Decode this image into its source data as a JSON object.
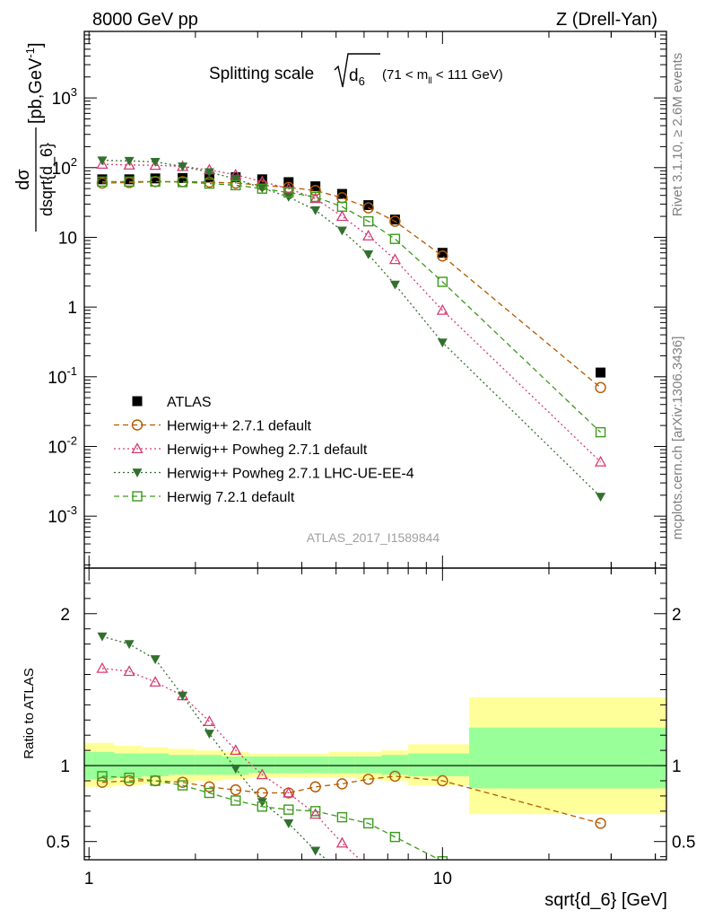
{
  "header": {
    "left_label": "8000 GeV pp",
    "right_label": "Z (Drell-Yan)"
  },
  "side_labels": {
    "rivet": "Rivet 3.1.10, ≥ 2.6M events",
    "mcplots": "mcplots.cern.ch [arXiv:1306.3436]"
  },
  "chart_data": {
    "type": "scatter",
    "title": {
      "prefix": "Splitting scale",
      "symbol": "d",
      "symbol_sub": "6",
      "range_open": "(71 < m",
      "range_sub": "ll",
      "range_close": " < 111 GeV)"
    },
    "watermark": "ATLAS_2017_I1589844",
    "xlabel": "sqrt{d_6} [GeV]",
    "x_scale": "log",
    "xlim": [
      0.97,
      43
    ],
    "x_ticks": [
      {
        "value": 1,
        "label": "1"
      },
      {
        "value": 10,
        "label": "10"
      }
    ],
    "main": {
      "y_scale": "log",
      "ylim": [
        0.00018,
        9000
      ],
      "ylabel": {
        "num": "dσ",
        "den": "dsqrt{d_6}",
        "unit_open": "[pb,GeV",
        "unit_exp": "-1",
        "unit_close": "]"
      },
      "y_ticks": [
        {
          "value": 0.001,
          "base": "10",
          "exp": "-3"
        },
        {
          "value": 0.01,
          "base": "10",
          "exp": "-2"
        },
        {
          "value": 0.1,
          "base": "10",
          "exp": "-1"
        },
        {
          "value": 1,
          "label": "1"
        },
        {
          "value": 10,
          "label": "10"
        },
        {
          "value": 100,
          "base": "10",
          "exp": "2"
        },
        {
          "value": 1000,
          "base": "10",
          "exp": "3"
        }
      ]
    },
    "ratio": {
      "ylim": [
        0.38,
        2.3
      ],
      "ylabel": "Ratio to ATLAS",
      "y_ticks": [
        {
          "value": 0.5,
          "label": "0.5"
        },
        {
          "value": 1,
          "label": "1"
        },
        {
          "value": 2,
          "label": "2"
        }
      ],
      "bands": [
        {
          "x0": 0.97,
          "x1": 1.18,
          "inner": [
            0.91,
            1.09
          ],
          "outer": [
            0.86,
            1.15
          ]
        },
        {
          "x0": 1.18,
          "x1": 1.41,
          "inner": [
            0.92,
            1.08
          ],
          "outer": [
            0.87,
            1.13
          ]
        },
        {
          "x0": 1.41,
          "x1": 1.68,
          "inner": [
            0.93,
            1.08
          ],
          "outer": [
            0.88,
            1.12
          ]
        },
        {
          "x0": 1.68,
          "x1": 2.0,
          "inner": [
            0.94,
            1.07
          ],
          "outer": [
            0.89,
            1.11
          ]
        },
        {
          "x0": 2.0,
          "x1": 2.38,
          "inner": [
            0.94,
            1.07
          ],
          "outer": [
            0.9,
            1.1
          ]
        },
        {
          "x0": 2.38,
          "x1": 2.83,
          "inner": [
            0.94,
            1.06
          ],
          "outer": [
            0.91,
            1.09
          ]
        },
        {
          "x0": 2.83,
          "x1": 3.36,
          "inner": [
            0.95,
            1.06
          ],
          "outer": [
            0.92,
            1.08
          ]
        },
        {
          "x0": 3.36,
          "x1": 4.0,
          "inner": [
            0.95,
            1.06
          ],
          "outer": [
            0.92,
            1.08
          ]
        },
        {
          "x0": 4.0,
          "x1": 4.76,
          "inner": [
            0.95,
            1.06
          ],
          "outer": [
            0.92,
            1.08
          ]
        },
        {
          "x0": 4.76,
          "x1": 5.66,
          "inner": [
            0.95,
            1.06
          ],
          "outer": [
            0.92,
            1.09
          ]
        },
        {
          "x0": 5.66,
          "x1": 6.73,
          "inner": [
            0.95,
            1.06
          ],
          "outer": [
            0.91,
            1.09
          ]
        },
        {
          "x0": 6.73,
          "x1": 8.0,
          "inner": [
            0.94,
            1.07
          ],
          "outer": [
            0.9,
            1.1
          ]
        },
        {
          "x0": 8.0,
          "x1": 11.9,
          "inner": [
            0.93,
            1.08
          ],
          "outer": [
            0.87,
            1.14
          ]
        },
        {
          "x0": 11.9,
          "x1": 43,
          "inner": [
            0.85,
            1.25
          ],
          "outer": [
            0.68,
            1.45
          ]
        }
      ]
    },
    "series": [
      {
        "name": "ATLAS",
        "kind": "data",
        "color": "#000000",
        "marker": "square-filled",
        "x": [
          1.09,
          1.3,
          1.54,
          1.84,
          2.19,
          2.6,
          3.09,
          3.67,
          4.37,
          5.2,
          6.17,
          7.34,
          10.0,
          28.0
        ],
        "y": [
          68,
          68,
          70,
          71,
          72,
          73,
          68,
          62,
          54,
          42,
          29,
          18,
          6,
          0.115
        ]
      },
      {
        "name": "Herwig++ 2.7.1 default",
        "color": "#b35900",
        "marker": "circle-open",
        "dash": "6,4",
        "x": [
          1.09,
          1.3,
          1.54,
          1.84,
          2.19,
          2.6,
          3.09,
          3.67,
          4.37,
          5.2,
          6.17,
          7.34,
          10.0,
          28.0
        ],
        "y": [
          60,
          61,
          63,
          63,
          62,
          60,
          56,
          52,
          47,
          37,
          26.5,
          17,
          5.4,
          0.07
        ],
        "ratio": [
          0.89,
          0.9,
          0.9,
          0.89,
          0.86,
          0.84,
          0.82,
          0.82,
          0.86,
          0.88,
          0.91,
          0.93,
          0.9,
          0.62
        ]
      },
      {
        "name": "Herwig++ Powheg 2.7.1 default",
        "color": "#d63b73",
        "marker": "triangle-open",
        "dash": "2,3",
        "x": [
          1.09,
          1.3,
          1.54,
          1.84,
          2.19,
          2.6,
          3.09,
          3.67,
          4.37,
          5.2,
          6.17,
          7.34,
          10.0,
          28.0
        ],
        "y": [
          112,
          109,
          108,
          104,
          93,
          79,
          63,
          50,
          36,
          20,
          10.5,
          4.8,
          0.9,
          0.006
        ],
        "ratio": [
          1.64,
          1.62,
          1.55,
          1.46,
          1.29,
          1.1,
          0.94,
          0.82,
          0.68,
          0.49,
          0.33
        ]
      },
      {
        "name": "Herwig++ Powheg 2.7.1 LHC-UE-EE-4",
        "color": "#33702e",
        "marker": "triangle-down-filled",
        "dash": "2,3",
        "x": [
          1.09,
          1.3,
          1.54,
          1.84,
          2.19,
          2.6,
          3.09,
          3.67,
          4.37,
          5.2,
          6.17,
          7.34,
          10.0,
          28.0
        ],
        "y": [
          127,
          125,
          121,
          104,
          86,
          69,
          51,
          38,
          24.5,
          12.5,
          5.7,
          2.1,
          0.31,
          0.0019
        ],
        "ratio": [
          1.85,
          1.8,
          1.7,
          1.46,
          1.21,
          0.98,
          0.76,
          0.62,
          0.44,
          0.3
        ]
      },
      {
        "name": "Herwig 7.2.1 default",
        "color": "#3c9a1d",
        "marker": "square-open",
        "dash": "6,4",
        "x": [
          1.09,
          1.3,
          1.54,
          1.84,
          2.19,
          2.6,
          3.09,
          3.67,
          4.37,
          5.2,
          6.17,
          7.34,
          10.0,
          28.0
        ],
        "y": [
          63,
          63,
          63,
          62,
          59,
          56,
          50,
          44,
          38,
          27.5,
          17,
          9.5,
          2.3,
          0.016
        ],
        "ratio": [
          0.93,
          0.92,
          0.9,
          0.87,
          0.82,
          0.77,
          0.73,
          0.71,
          0.7,
          0.66,
          0.62,
          0.53,
          0.37
        ]
      }
    ]
  }
}
